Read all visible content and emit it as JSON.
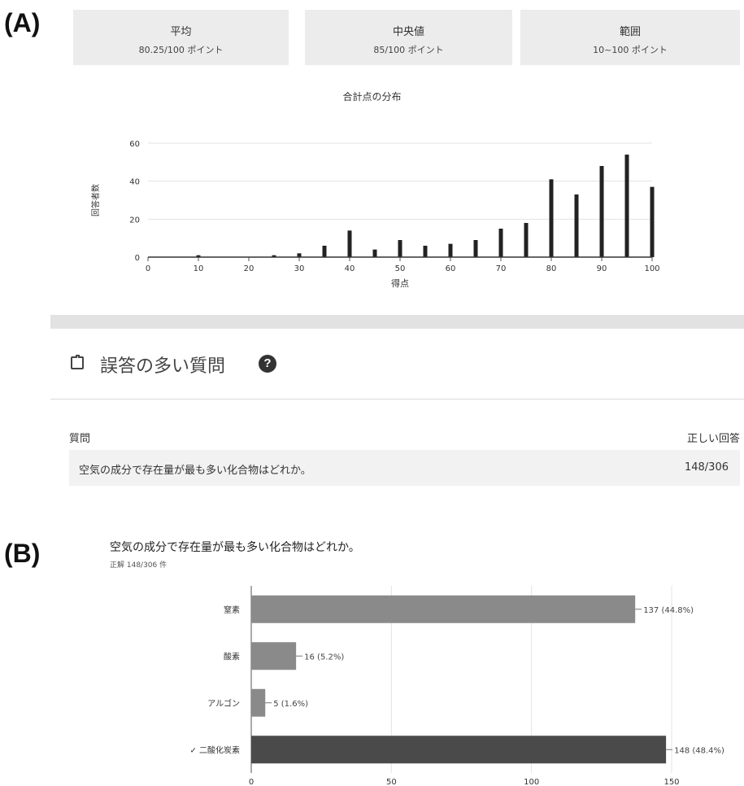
{
  "panel_a_label": "(A)",
  "panel_b_label": "(B)",
  "stats": [
    {
      "title": "平均",
      "value": "80.25/100 ポイント"
    },
    {
      "title": "中央値",
      "value": "85/100 ポイント"
    },
    {
      "title": "範囲",
      "value": "10~100 ポイント"
    }
  ],
  "section": {
    "title": "誤答の多い質問",
    "help_icon": "question-circle-icon",
    "header_icon": "clipboard-alert-icon",
    "col_question": "質問",
    "col_correct": "正しい回答",
    "rows": [
      {
        "question": "空気の成分で存在量が最も多い化合物はどれか。",
        "correct": "148/306"
      }
    ]
  },
  "chart_data": [
    {
      "type": "bar",
      "title": "合計点の分布",
      "xlabel": "得点",
      "ylabel": "回答者数",
      "x": [
        10,
        25,
        30,
        35,
        40,
        45,
        50,
        55,
        60,
        65,
        70,
        75,
        80,
        85,
        90,
        95,
        100
      ],
      "values": [
        1,
        1,
        2,
        6,
        14,
        4,
        9,
        6,
        7,
        9,
        15,
        18,
        41,
        33,
        48,
        54,
        37
      ],
      "xlim": [
        0,
        100
      ],
      "ylim": [
        0,
        60
      ],
      "xticks": [
        "0",
        "10",
        "20",
        "30",
        "40",
        "50",
        "60",
        "70",
        "80",
        "90",
        "100"
      ],
      "yticks": [
        "0",
        "20",
        "40",
        "60"
      ],
      "bar_color": "#222222",
      "grid": true
    },
    {
      "type": "bar",
      "orientation": "horizontal",
      "title": "空気の成分で存在量が最も多い化合物はどれか。",
      "subtitle": "正解 148/306 件",
      "categories": [
        "窒素",
        "酸素",
        "アルゴン",
        "✓ 二酸化炭素"
      ],
      "values": [
        137,
        16,
        5,
        148
      ],
      "labels": [
        "137 (44.8%)",
        "16 (5.2%)",
        "5 (1.6%)",
        "148 (48.4%)"
      ],
      "colors": [
        "#8a8a8a",
        "#8a8a8a",
        "#8a8a8a",
        "#4a4a4a"
      ],
      "xlim": [
        0,
        150
      ],
      "xticks": [
        "0",
        "50",
        "100",
        "150"
      ],
      "grid": true
    }
  ]
}
